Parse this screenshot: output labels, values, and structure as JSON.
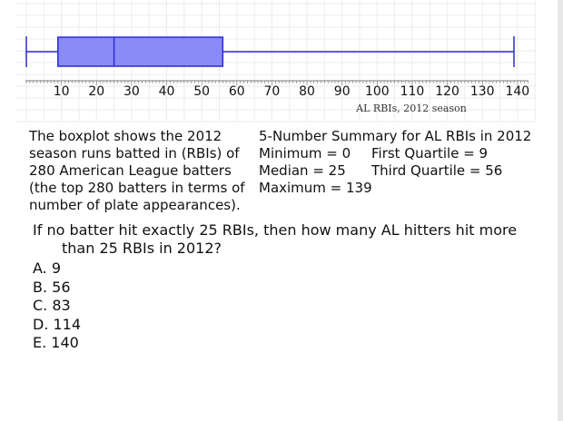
{
  "chart_data": {
    "type": "boxplot",
    "xlabel": "AL RBIs, 2012 season",
    "xlim": [
      0,
      142
    ],
    "ticks": [
      10,
      20,
      30,
      40,
      50,
      60,
      70,
      80,
      90,
      100,
      110,
      120,
      130,
      140
    ],
    "minor_tick_step": 1,
    "whisker_low": 0,
    "q1": 9,
    "median": 25,
    "q3": 56,
    "whisker_high": 139,
    "box_color": "#8a8af8",
    "line_color": "#2b2bd6",
    "grid": true
  },
  "description": [
    "The boxplot shows the 2012",
    "season runs batted in (RBIs) of",
    "280 American League batters",
    "(the top 280 batters in terms of",
    "number of plate appearances)."
  ],
  "summary": {
    "title": "5-Number Summary for AL RBIs in 2012",
    "minimum": "Minimum = 0",
    "q1": "First Quartile = 9",
    "median": "Median = 25",
    "q3": "Third Quartile = 56",
    "maximum": "Maximum = 139"
  },
  "question": {
    "line1": "If no batter hit exactly 25 RBIs, then how many AL hitters hit more",
    "line2": "than 25 RBIs in 2012?"
  },
  "choices": [
    "A. 9",
    "B. 56",
    "C. 83",
    "D. 114",
    "E. 140"
  ]
}
